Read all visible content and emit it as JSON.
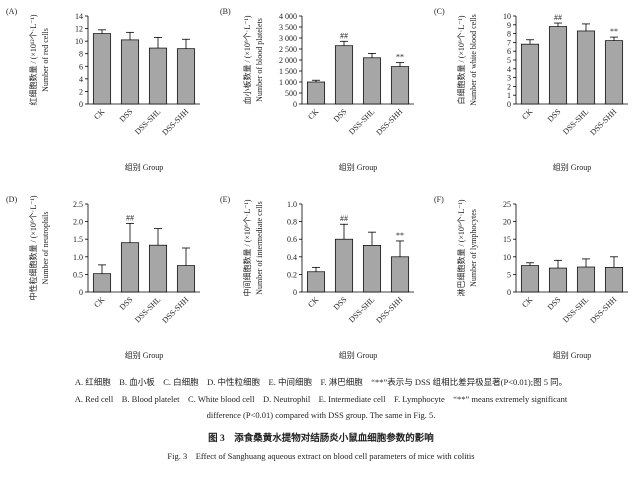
{
  "chart_data": [
    {
      "type": "bar",
      "panel": "(A)",
      "ylabel_zh": "红细胞数量 / (×10¹²个·L⁻¹)",
      "ylabel_en": "Number of red cells",
      "xlabel": "组别 Group",
      "categories": [
        "CK",
        "DSS",
        "DSS-SHL",
        "DSS-SHH"
      ],
      "values": [
        11.2,
        10.2,
        8.9,
        8.8
      ],
      "error": [
        0.6,
        1.2,
        1.7,
        1.5
      ],
      "annotations": [
        null,
        null,
        null,
        null
      ],
      "color": "#a6a6a6",
      "ylim": [
        0,
        14
      ],
      "yticks": [
        0,
        2,
        4,
        6,
        8,
        10,
        12,
        14
      ]
    },
    {
      "type": "bar",
      "panel": "(B)",
      "ylabel_zh": "血小板数量 / (×10⁹个·L⁻¹)",
      "ylabel_en": "Number of blood platelets",
      "xlabel": "组别 Group",
      "categories": [
        "CK",
        "DSS",
        "DSS-SHL",
        "DSS-SHH"
      ],
      "values": [
        1000,
        2650,
        2100,
        1700
      ],
      "error": [
        80,
        200,
        200,
        180
      ],
      "annotations": [
        null,
        "##",
        null,
        "**"
      ],
      "color": "#a6a6a6",
      "ylim": [
        0,
        4000
      ],
      "yticks": [
        0,
        500,
        {
          "value": 1000,
          "label": "1 000"
        },
        {
          "value": 1500,
          "label": "1 500"
        },
        {
          "value": 2000,
          "label": "2 000"
        },
        {
          "value": 2500,
          "label": "2 500"
        },
        {
          "value": 3000,
          "label": "3 000"
        },
        {
          "value": 3500,
          "label": "3 500"
        },
        {
          "value": 4000,
          "label": "4 000"
        }
      ]
    },
    {
      "type": "bar",
      "panel": "(C)",
      "ylabel_zh": "白细胞数量 / (×10⁹个·L⁻¹)",
      "ylabel_en": "Number of white blood cells",
      "xlabel": "组别 Group",
      "categories": [
        "CK",
        "DSS",
        "DSS-SHL",
        "DSS-SHH"
      ],
      "values": [
        6.8,
        8.8,
        8.3,
        7.2
      ],
      "error": [
        0.5,
        0.4,
        0.8,
        0.4
      ],
      "annotations": [
        null,
        "##",
        null,
        "**"
      ],
      "color": "#a6a6a6",
      "ylim": [
        0,
        10
      ],
      "yticks": [
        0,
        1,
        2,
        3,
        4,
        5,
        6,
        7,
        8,
        9,
        10
      ]
    },
    {
      "type": "bar",
      "panel": "(D)",
      "ylabel_zh": "中性粒细胞数量 / (×10⁹个·L⁻¹)",
      "ylabel_en": "Number of neutrophils",
      "xlabel": "组别 Group",
      "categories": [
        "CK",
        "DSS",
        "DSS-SHL",
        "DSS-SHH"
      ],
      "values": [
        0.52,
        1.4,
        1.33,
        0.75
      ],
      "error": [
        0.25,
        0.55,
        0.47,
        0.5
      ],
      "annotations": [
        null,
        "##",
        null,
        null
      ],
      "color": "#a6a6a6",
      "ylim": [
        0,
        2.5
      ],
      "yticks": [
        0,
        0.5,
        {
          "value": 1,
          "label": "1.0"
        },
        1.5,
        {
          "value": 2,
          "label": "2.0"
        },
        2.5
      ]
    },
    {
      "type": "bar",
      "panel": "(E)",
      "ylabel_zh": "中间细胞数量 / (×10⁹个·L⁻¹)",
      "ylabel_en": "Number of intermediate cells",
      "xlabel": "组别 Group",
      "categories": [
        "CK",
        "DSS",
        "DSS-SHL",
        "DSS-SHH"
      ],
      "values": [
        0.23,
        0.6,
        0.53,
        0.4
      ],
      "error": [
        0.05,
        0.17,
        0.15,
        0.18
      ],
      "annotations": [
        null,
        "##",
        null,
        "**"
      ],
      "color": "#a6a6a6",
      "ylim": [
        0,
        1
      ],
      "yticks": [
        0,
        0.2,
        0.4,
        0.6,
        0.8,
        {
          "value": 1,
          "label": "1.0"
        }
      ]
    },
    {
      "type": "bar",
      "panel": "(F)",
      "ylabel_zh": "淋巴细胞数量 / (×10⁹个·L⁻¹)",
      "ylabel_en": "Number of lymphocytes",
      "xlabel": "组别 Group",
      "categories": [
        "CK",
        "DSS",
        "DSS-SHL",
        "DSS-SHH"
      ],
      "values": [
        7.5,
        6.8,
        7.1,
        7.0
      ],
      "error": [
        0.8,
        2.2,
        2.3,
        3.0
      ],
      "annotations": [
        null,
        null,
        null,
        null
      ],
      "color": "#a6a6a6",
      "ylim": [
        0,
        25
      ],
      "yticks": [
        0,
        5,
        10,
        15,
        20,
        25
      ]
    }
  ],
  "caption": {
    "legend_zh": "A. 红细胞　B. 血小板　C. 白细胞　D. 中性粒细胞　E. 中间细胞　F. 淋巴细胞　“**”表示与 DSS 组相比差异极显著(P<0.01);图 5 同。",
    "legend_en_1": "A. Red cell　B. Blood platelet　C. White blood cell　D. Neutrophil　E. Intermediate cell　F. Lymphocyte　“**” means extremely significant",
    "legend_en_2": "difference (P<0.01) compared with DSS group. The same in Fig. 5.",
    "title_zh": "图 3　添食桑黄水提物对结肠炎小鼠血细胞参数的影响",
    "title_en": "Fig. 3　Effect of Sanghuang aqueous extract on blood cell parameters of mice with colitis"
  }
}
